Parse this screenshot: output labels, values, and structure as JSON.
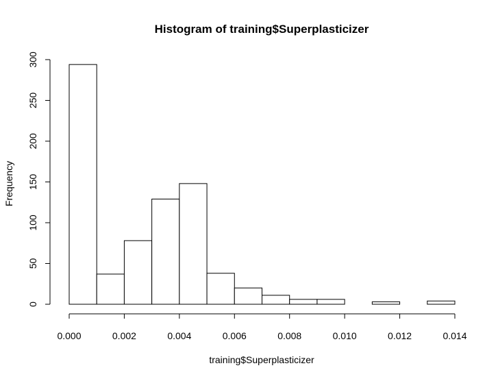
{
  "chart_data": {
    "type": "bar",
    "title": "Histogram of training$Superplasticizer",
    "xlabel": "training$Superplasticizer",
    "ylabel": "Frequency",
    "bin_edges": [
      0.0,
      0.001,
      0.002,
      0.003,
      0.004,
      0.005,
      0.006,
      0.007,
      0.008,
      0.009,
      0.01,
      0.011,
      0.012,
      0.013,
      0.014
    ],
    "values": [
      294,
      37,
      78,
      129,
      148,
      38,
      20,
      11,
      6,
      6,
      0,
      3,
      0,
      4
    ],
    "xlim": [
      0,
      0.014
    ],
    "ylim": [
      0,
      300
    ],
    "x_ticks": [
      "0.000",
      "0.002",
      "0.004",
      "0.006",
      "0.008",
      "0.010",
      "0.012",
      "0.014"
    ],
    "y_ticks": [
      "0",
      "50",
      "100",
      "150",
      "200",
      "250",
      "300"
    ],
    "grid": false,
    "bar_fill": "#ffffff",
    "bar_stroke": "#000000"
  }
}
